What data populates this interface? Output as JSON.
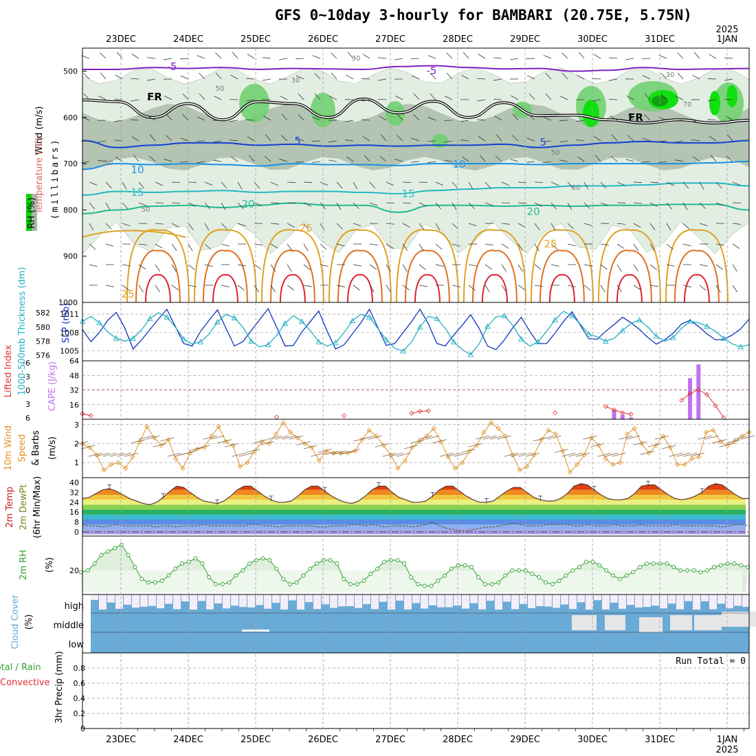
{
  "title": "GFS 0~10day 3-hourly for BAMBARI (20.75E, 5.75N)",
  "colors": {
    "rh_band": "#c8d8c8",
    "rh_dark": "#9aae9a",
    "rh_green": "#70d070",
    "rh_bright": "#10e010",
    "temp_purple": "#8020c0",
    "temp_blue": "#1040d0",
    "temp_lightblue": "#1890e0",
    "temp_cyan": "#20b8c0",
    "temp_green": "#20b890",
    "temp_orange": "#e0a020",
    "temp_darkorange": "#e07020",
    "temp_red": "#e02030",
    "fr_line": "#000000",
    "slp": "#1030c0",
    "thickness": "#20b0c0",
    "cape": "#c070f0",
    "lifted": "#e03030",
    "wind_speed": "#e09020",
    "wind_barb": "#806040",
    "rh2m": "#30a030",
    "rh2m_fill": "#dfeedd",
    "cloud": "#6aaad6",
    "cloud_bg": "#f4eef8",
    "grid": "#a0a0a0"
  },
  "chart_data": [
    {
      "type": "contour",
      "panel": "upper-air",
      "ylabel_left": [
        "RH (%)",
        "Temperature (°C)",
        "Wind (m/s)"
      ],
      "ylabel_right": "(millibars)",
      "yticks": [
        500,
        600,
        700,
        800,
        900,
        1000
      ],
      "ylim": [
        1000,
        450
      ],
      "days": [
        "23DEC",
        "24DEC",
        "25DEC",
        "26DEC",
        "27DEC",
        "28DEC",
        "29DEC",
        "30DEC",
        "31DEC",
        "1JAN"
      ],
      "year_label": "2025",
      "contour_labels": [
        "-5",
        "-5",
        "FR",
        "FR",
        "5",
        "5",
        "10",
        "10",
        "15",
        "15",
        "20",
        "20",
        "25",
        "25",
        "25"
      ],
      "rh_labels": [
        "30",
        "50",
        "30",
        "50",
        "50",
        "50",
        "30",
        "70",
        "30"
      ],
      "temperature_levels_mb": {
        "-5": [
          496,
          496,
          492,
          494,
          492,
          496,
          494,
          495,
          496,
          490,
          488,
          492,
          495,
          494,
          500,
          498,
          492,
          496,
          495,
          494
        ],
        "FR": [
          562,
          566,
          600,
          570,
          605,
          566,
          570,
          600,
          560,
          590,
          565,
          600,
          568,
          596,
          595,
          605,
          612,
          605,
          612,
          606
        ],
        "5": [
          650,
          665,
          660,
          655,
          655,
          660,
          658,
          662,
          660,
          662,
          660,
          660,
          658,
          665,
          660,
          655,
          652,
          655,
          655,
          650
        ],
        "10": [
          712,
          700,
          702,
          700,
          702,
          705,
          700,
          702,
          702,
          704,
          700,
          700,
          700,
          702,
          700,
          700,
          700,
          700,
          698,
          695
        ],
        "15": [
          768,
          760,
          762,
          760,
          758,
          762,
          760,
          760,
          762,
          765,
          758,
          755,
          752,
          752,
          748,
          748,
          746,
          742,
          742,
          748
        ],
        "20": [
          808,
          800,
          792,
          790,
          795,
          790,
          785,
          790,
          790,
          805,
          790,
          790,
          792,
          790,
          792,
          790,
          790,
          788,
          788,
          800
        ]
      }
    },
    {
      "type": "line",
      "panel": "slp-thickness",
      "ylabel_left": "1000-500mb Thickness (dm)",
      "ylabel_right": "SLP (mb)",
      "yticks_left": [
        576,
        578,
        580,
        582
      ],
      "yticks_right": [
        1005,
        1008,
        1011
      ],
      "series": [
        {
          "name": "SLP (mb)",
          "axis": "right",
          "values": [
            1008.5,
            1006.5,
            1008.0,
            1010.0,
            1011.3,
            1008.8,
            1005.3,
            1006.8,
            1008.5,
            1010.2,
            1011.8,
            1009.0,
            1006.2,
            1005.8,
            1008.2,
            1010.0,
            1011.7,
            1008.7,
            1005.8,
            1006.5,
            1008.3,
            1010.1,
            1011.9,
            1008.9,
            1005.8,
            1005.9,
            1008.1,
            1009.8,
            1011.5,
            1008.2,
            1005.3,
            1006.0,
            1007.8,
            1009.6,
            1011.8,
            1008.8,
            1005.9,
            1006.2,
            1008.0,
            1009.8,
            1011.8,
            1009.4,
            1006.2,
            1005.8,
            1007.6,
            1009.2,
            1010.9,
            1008.7,
            1005.8,
            1005.2,
            1006.8,
            1008.8,
            1010.5,
            1008.2,
            1006.2,
            1006.2,
            1007.9,
            1009.8,
            1011.4,
            1009.2,
            1007.0,
            1006.9,
            1008.2,
            1009.3,
            1010.5,
            1009.6,
            1008.5,
            1007.2,
            1006.1,
            1006.8,
            1007.9,
            1009.4,
            1010.0,
            1009.0,
            1007.8,
            1006.8,
            1006.9,
            1007.6,
            1008.6,
            1010.2
          ]
        },
        {
          "name": "Thickness (dm)",
          "axis": "left",
          "values": [
            580.8,
            581.5,
            580.6,
            579.3,
            578.4,
            578.0,
            578.4,
            579.6,
            581.2,
            582.0,
            581.4,
            580.0,
            578.3,
            577.6,
            577.9,
            579.0,
            580.7,
            581.8,
            581.3,
            580.0,
            578.0,
            577.2,
            577.5,
            578.8,
            580.5,
            581.6,
            580.8,
            579.5,
            577.9,
            577.3,
            577.8,
            579.2,
            580.9,
            581.8,
            581.4,
            579.8,
            578.2,
            577.0,
            576.6,
            577.9,
            580.0,
            581.5,
            581.2,
            579.8,
            577.9,
            576.8,
            576.1,
            577.6,
            580.1,
            581.4,
            581.6,
            580.2,
            578.3,
            577.3,
            577.9,
            579.4,
            581.0,
            582.2,
            581.6,
            580.4,
            579.0,
            578.6,
            578.0,
            578.4,
            579.5,
            580.5,
            581.0,
            580.0,
            578.7,
            578.0,
            578.5,
            579.8,
            580.8,
            580.6,
            580.1,
            579.4,
            578.4,
            577.6,
            577.2,
            577.5
          ]
        }
      ]
    },
    {
      "type": "bar",
      "panel": "cape-lifted-index",
      "ylabel_left": "Lifted Index",
      "ylabel_right": "CAPE (J/kg)",
      "yticks_left": [
        "6",
        "3",
        "0",
        "-3",
        "-6"
      ],
      "yticks_right": [
        16,
        32,
        48,
        64
      ],
      "series": [
        {
          "name": "CAPE (J/kg)",
          "values": [
            [
              63,
              10
            ],
            [
              64,
              5
            ],
            [
              65,
              2
            ],
            [
              72,
              45
            ],
            [
              73,
              60
            ]
          ]
        },
        {
          "name": "Lifted Index",
          "values": [
            [
              0,
              5.0
            ],
            [
              1,
              5.4
            ],
            [
              23,
              5.7
            ],
            [
              31,
              5.4
            ],
            [
              39,
              4.9
            ],
            [
              40,
              4.5
            ],
            [
              41,
              4.4
            ],
            [
              56,
              4.8
            ],
            [
              62,
              3.5
            ],
            [
              63,
              4.2
            ],
            [
              64,
              4.8
            ],
            [
              65,
              5.1
            ],
            [
              71,
              2.2
            ],
            [
              72,
              0.8
            ],
            [
              73,
              0.0
            ],
            [
              74,
              1.0
            ],
            [
              75,
              3.3
            ],
            [
              76,
              5.8
            ]
          ]
        }
      ]
    },
    {
      "type": "line",
      "panel": "10m-wind",
      "ylabel_left": [
        "10m Wind",
        "Speed",
        "& Barbs"
      ],
      "ylabel_right": "(m/s)",
      "yticks": [
        1,
        2,
        3
      ],
      "series": [
        {
          "name": "10m Wind Speed",
          "values": [
            2.0,
            1.8,
            1.4,
            0.6,
            0.9,
            1.0,
            0.7,
            1.3,
            2.1,
            2.9,
            2.3,
            1.9,
            2.2,
            1.2,
            0.7,
            1.5,
            1.7,
            1.8,
            2.4,
            2.9,
            2.1,
            1.9,
            0.8,
            1.0,
            1.6,
            2.1,
            2.0,
            2.5,
            3.1,
            2.6,
            2.3,
            2.0,
            1.8,
            1.1,
            1.6,
            1.5,
            1.5,
            1.5,
            1.6,
            2.2,
            2.7,
            2.4,
            1.9,
            1.4,
            0.7,
            1.1,
            1.8,
            2.1,
            2.4,
            2.8,
            2.1,
            1.3,
            0.7,
            1.0,
            1.6,
            1.9,
            2.6,
            3.1,
            2.8,
            2.4,
            1.4,
            0.6,
            0.8,
            1.4,
            2.2,
            2.7,
            2.5,
            1.6,
            0.5,
            0.9,
            1.4,
            2.3,
            1.9,
            1.2,
            0.9,
            1.0,
            2.5,
            2.8,
            2.0,
            1.5,
            1.9,
            2.4,
            1.8,
            0.9,
            0.9,
            1.2,
            1.3,
            2.6,
            2.7,
            2.1,
            1.9,
            2.1,
            2.4,
            2.6
          ]
        }
      ]
    },
    {
      "type": "area",
      "panel": "2m-temp",
      "ylabel_left": [
        "2m Temp",
        "2m DewPt",
        "(6hr Min/Max)"
      ],
      "yticks": [
        0,
        8,
        16,
        24,
        32,
        40
      ],
      "series": [
        {
          "name": "2m Temp",
          "values": [
            27,
            28,
            31,
            34,
            35,
            33,
            30,
            27,
            25,
            23,
            22,
            24,
            28,
            33,
            37,
            36,
            32,
            28,
            25,
            24,
            23,
            25,
            29,
            34,
            37,
            37,
            33,
            29,
            26,
            24,
            24,
            25,
            29,
            34,
            37,
            37,
            33,
            29,
            26,
            24,
            23,
            25,
            29,
            34,
            37,
            37,
            32,
            28,
            26,
            24,
            24,
            25,
            29,
            34,
            37,
            37,
            33,
            29,
            26,
            24,
            24,
            25,
            29,
            33,
            36,
            36,
            32,
            28,
            26,
            25,
            25,
            27,
            31,
            37,
            39,
            38,
            34,
            30,
            27,
            26,
            26,
            27,
            31,
            37,
            38,
            38,
            34,
            30,
            27,
            26,
            27,
            29,
            32,
            37,
            39,
            38,
            34,
            30,
            27,
            27
          ]
        },
        {
          "name": "2m DewPt",
          "values": [
            6,
            5,
            5,
            4,
            5,
            6,
            5,
            5,
            5,
            5,
            5,
            4,
            5,
            5,
            4,
            5,
            5,
            5,
            6,
            5,
            5,
            5,
            5,
            5,
            5,
            6,
            6,
            5,
            5,
            4,
            5,
            5,
            5,
            5,
            5,
            4,
            4,
            5,
            5,
            5,
            6,
            6,
            5,
            6,
            5,
            4,
            5,
            5,
            5,
            4,
            5,
            6,
            8,
            5,
            3,
            2,
            1,
            1,
            2,
            3,
            4,
            4,
            5,
            6,
            7,
            6,
            5,
            5,
            5,
            6,
            6,
            6,
            6,
            5,
            5,
            6,
            5,
            5,
            5,
            6,
            5,
            5,
            5,
            6,
            5,
            5,
            5,
            5,
            6,
            5,
            5,
            5,
            5,
            5,
            5,
            4,
            5,
            6,
            6,
            5
          ]
        }
      ]
    },
    {
      "type": "area",
      "panel": "2m-rh",
      "ylabel_left": "2m RH",
      "ylabel_right": "(%)",
      "yticks": [
        20
      ],
      "series": [
        {
          "name": "2m RH (%)",
          "values": [
            19,
            20,
            24,
            29,
            31,
            33,
            35,
            29,
            22,
            15,
            13,
            13,
            14,
            17,
            21,
            24,
            25,
            27,
            24,
            16,
            12,
            12,
            13,
            17,
            20,
            24,
            26,
            27,
            26,
            21,
            15,
            12,
            13,
            17,
            21,
            24,
            26,
            26,
            24,
            15,
            12,
            12,
            14,
            18,
            21,
            25,
            26,
            26,
            24,
            16,
            12,
            11,
            11,
            14,
            17,
            21,
            23,
            23,
            22,
            16,
            12,
            12,
            13,
            17,
            20,
            20,
            20,
            18,
            16,
            13,
            12,
            14,
            17,
            20,
            22,
            25,
            25,
            23,
            20,
            17,
            15,
            17,
            19,
            22,
            24,
            24,
            24,
            24,
            22,
            20,
            20,
            20,
            19,
            20,
            22,
            23,
            24,
            24,
            23,
            22
          ]
        }
      ]
    },
    {
      "type": "bar",
      "panel": "cloud-cover",
      "ylabel_left": "Cloud Cover",
      "ylabel_right": "(%)",
      "layers": [
        "high",
        "middle",
        "low"
      ]
    },
    {
      "type": "bar",
      "panel": "precip",
      "ylabel_left": [
        "Total / Rain",
        "Convective"
      ],
      "ylabel_right": "3hr Precip (mm)",
      "yticks": [
        "0",
        "0.2",
        "0.4",
        "0.6",
        "0.8"
      ],
      "annotation": "Run Total = 0",
      "values": []
    }
  ]
}
